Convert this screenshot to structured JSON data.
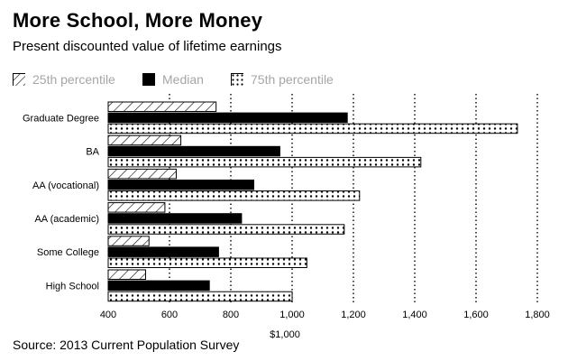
{
  "header": {
    "title": "More School, More Money",
    "subtitle": "Present discounted value of lifetime earnings"
  },
  "footer": {
    "source": "Source: 2013 Current Population Survey"
  },
  "chart_data": {
    "type": "bar",
    "orientation": "horizontal",
    "title": "More School, More Money",
    "subtitle": "Present discounted value of lifetime earnings",
    "xlabel": "$1,000",
    "ylabel": "",
    "xlim": [
      400,
      1800
    ],
    "x_ticks": [
      400,
      600,
      800,
      1000,
      1200,
      1400,
      1600,
      1800
    ],
    "x_tick_labels": [
      "400",
      "600",
      "800",
      "1,000",
      "1,200",
      "1,400",
      "1,600",
      "1,800"
    ],
    "grid": "vertical dotted",
    "legend_position": "top-left",
    "categories": [
      "Graduate Degree",
      "BA",
      "AA (vocational)",
      "AA (academic)",
      "Some College",
      "High School"
    ],
    "series": [
      {
        "name": "25th percentile",
        "pattern": "diagonal-hatch",
        "values": [
          752,
          637,
          622,
          585,
          533,
          522
        ]
      },
      {
        "name": "Median",
        "pattern": "solid",
        "color": "#000000",
        "values": [
          1180,
          960,
          875,
          835,
          760,
          730
        ]
      },
      {
        "name": "75th percentile",
        "pattern": "dots",
        "values": [
          1735,
          1420,
          1220,
          1170,
          1048,
          1000
        ]
      }
    ]
  }
}
